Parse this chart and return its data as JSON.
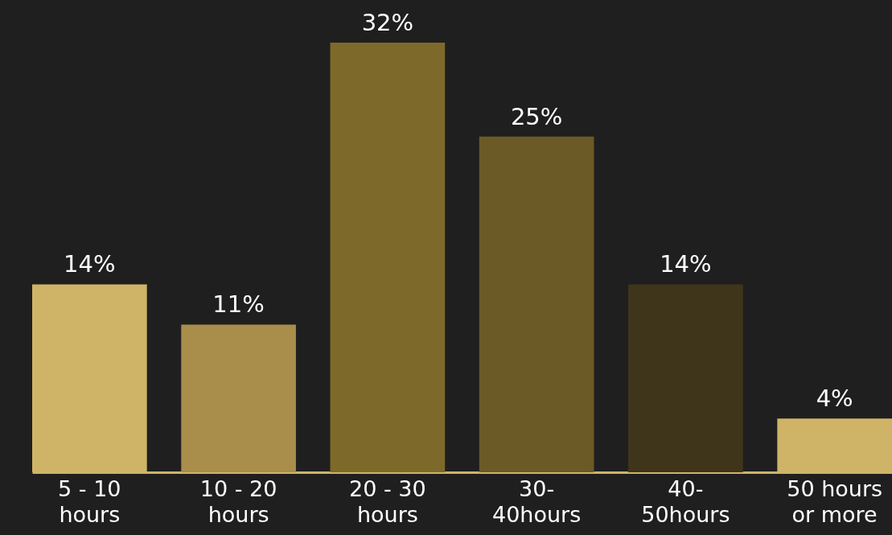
{
  "chart_data": {
    "type": "bar",
    "categories": [
      "5 - 10\nhours",
      "10 - 20\nhours",
      "20 - 30\nhours",
      "30-\n40hours",
      "40-\n50hours",
      "50 hours\nor more"
    ],
    "values": [
      14,
      11,
      32,
      25,
      14,
      4
    ],
    "colors": [
      "#cfb467",
      "#a88e4a",
      "#7d6a2a",
      "#6b5a26",
      "#3f351a",
      "#cfb467"
    ],
    "value_labels": [
      "14%",
      "11%",
      "32%",
      "25%",
      "14%",
      "4%"
    ],
    "grid": false
  }
}
